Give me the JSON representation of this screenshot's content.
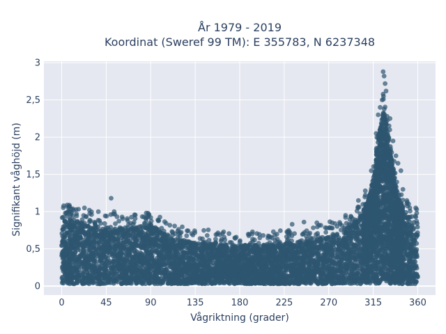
{
  "chart_data": {
    "type": "scatter",
    "title": "År 1979 - 2019",
    "subtitle": "Koordinat (Sweref 99 TM): E 355783, N 6237348",
    "xlabel": "Vågriktning (grader)",
    "ylabel": "Signifikant våghöjd (m)",
    "xlim": [
      -18,
      378
    ],
    "ylim": [
      -0.12,
      3.02
    ],
    "x_ticks": [
      0,
      45,
      90,
      135,
      180,
      225,
      270,
      315,
      360
    ],
    "x_tick_labels": [
      "0",
      "45",
      "90",
      "135",
      "180",
      "225",
      "270",
      "315",
      "360"
    ],
    "y_ticks": [
      0,
      0.5,
      1,
      1.5,
      2,
      2.5,
      3
    ],
    "y_tick_labels": [
      "0",
      "0,5",
      "1",
      "1,5",
      "2",
      "2,5",
      "3"
    ],
    "grid": true,
    "legend": "none",
    "marker_color": "#2e5670",
    "plot_background": "#e5e8f0",
    "envelope": {
      "x": [
        0,
        10,
        20,
        30,
        45,
        60,
        75,
        90,
        105,
        120,
        135,
        150,
        165,
        180,
        195,
        210,
        225,
        240,
        255,
        270,
        285,
        300,
        310,
        315,
        320,
        325,
        330,
        335,
        340,
        350,
        360
      ],
      "y_max": [
        0.95,
        0.9,
        0.85,
        0.82,
        0.8,
        0.78,
        0.8,
        0.83,
        0.7,
        0.62,
        0.6,
        0.58,
        0.55,
        0.55,
        0.55,
        0.56,
        0.58,
        0.6,
        0.62,
        0.68,
        0.75,
        0.9,
        1.15,
        1.45,
        2.0,
        2.4,
        2.1,
        1.6,
        1.2,
        0.95,
        0.85
      ]
    },
    "outliers": [
      {
        "x": 2,
        "y": 1.08
      },
      {
        "x": 8,
        "y": 1.07
      },
      {
        "x": 12,
        "y": 1.02
      },
      {
        "x": 23,
        "y": 1.05
      },
      {
        "x": 28,
        "y": 1.02
      },
      {
        "x": 37,
        "y": 1.0
      },
      {
        "x": 50,
        "y": 1.18
      },
      {
        "x": 53,
        "y": 1.0
      },
      {
        "x": 86,
        "y": 0.93
      },
      {
        "x": 90,
        "y": 0.92
      },
      {
        "x": 165,
        "y": 0.62
      },
      {
        "x": 195,
        "y": 0.62
      },
      {
        "x": 214,
        "y": 0.73
      },
      {
        "x": 233,
        "y": 0.83
      },
      {
        "x": 245,
        "y": 0.86
      },
      {
        "x": 258,
        "y": 0.85
      },
      {
        "x": 268,
        "y": 0.78
      },
      {
        "x": 287,
        "y": 0.95
      },
      {
        "x": 300,
        "y": 1.15
      },
      {
        "x": 307,
        "y": 1.28
      },
      {
        "x": 313,
        "y": 1.55
      },
      {
        "x": 318,
        "y": 2.05
      },
      {
        "x": 320,
        "y": 2.3
      },
      {
        "x": 322,
        "y": 2.4
      },
      {
        "x": 324,
        "y": 2.5
      },
      {
        "x": 325,
        "y": 2.88
      },
      {
        "x": 326,
        "y": 2.82
      },
      {
        "x": 327,
        "y": 2.72
      },
      {
        "x": 328,
        "y": 2.62
      },
      {
        "x": 329,
        "y": 2.28
      },
      {
        "x": 332,
        "y": 2.25
      },
      {
        "x": 335,
        "y": 1.95
      },
      {
        "x": 338,
        "y": 1.75
      },
      {
        "x": 340,
        "y": 1.65
      },
      {
        "x": 343,
        "y": 1.55
      },
      {
        "x": 345,
        "y": 1.3
      },
      {
        "x": 349,
        "y": 1.15
      },
      {
        "x": 352,
        "y": 1.05
      },
      {
        "x": 358,
        "y": 1.05
      },
      {
        "x": 359,
        "y": 0.98
      }
    ]
  }
}
